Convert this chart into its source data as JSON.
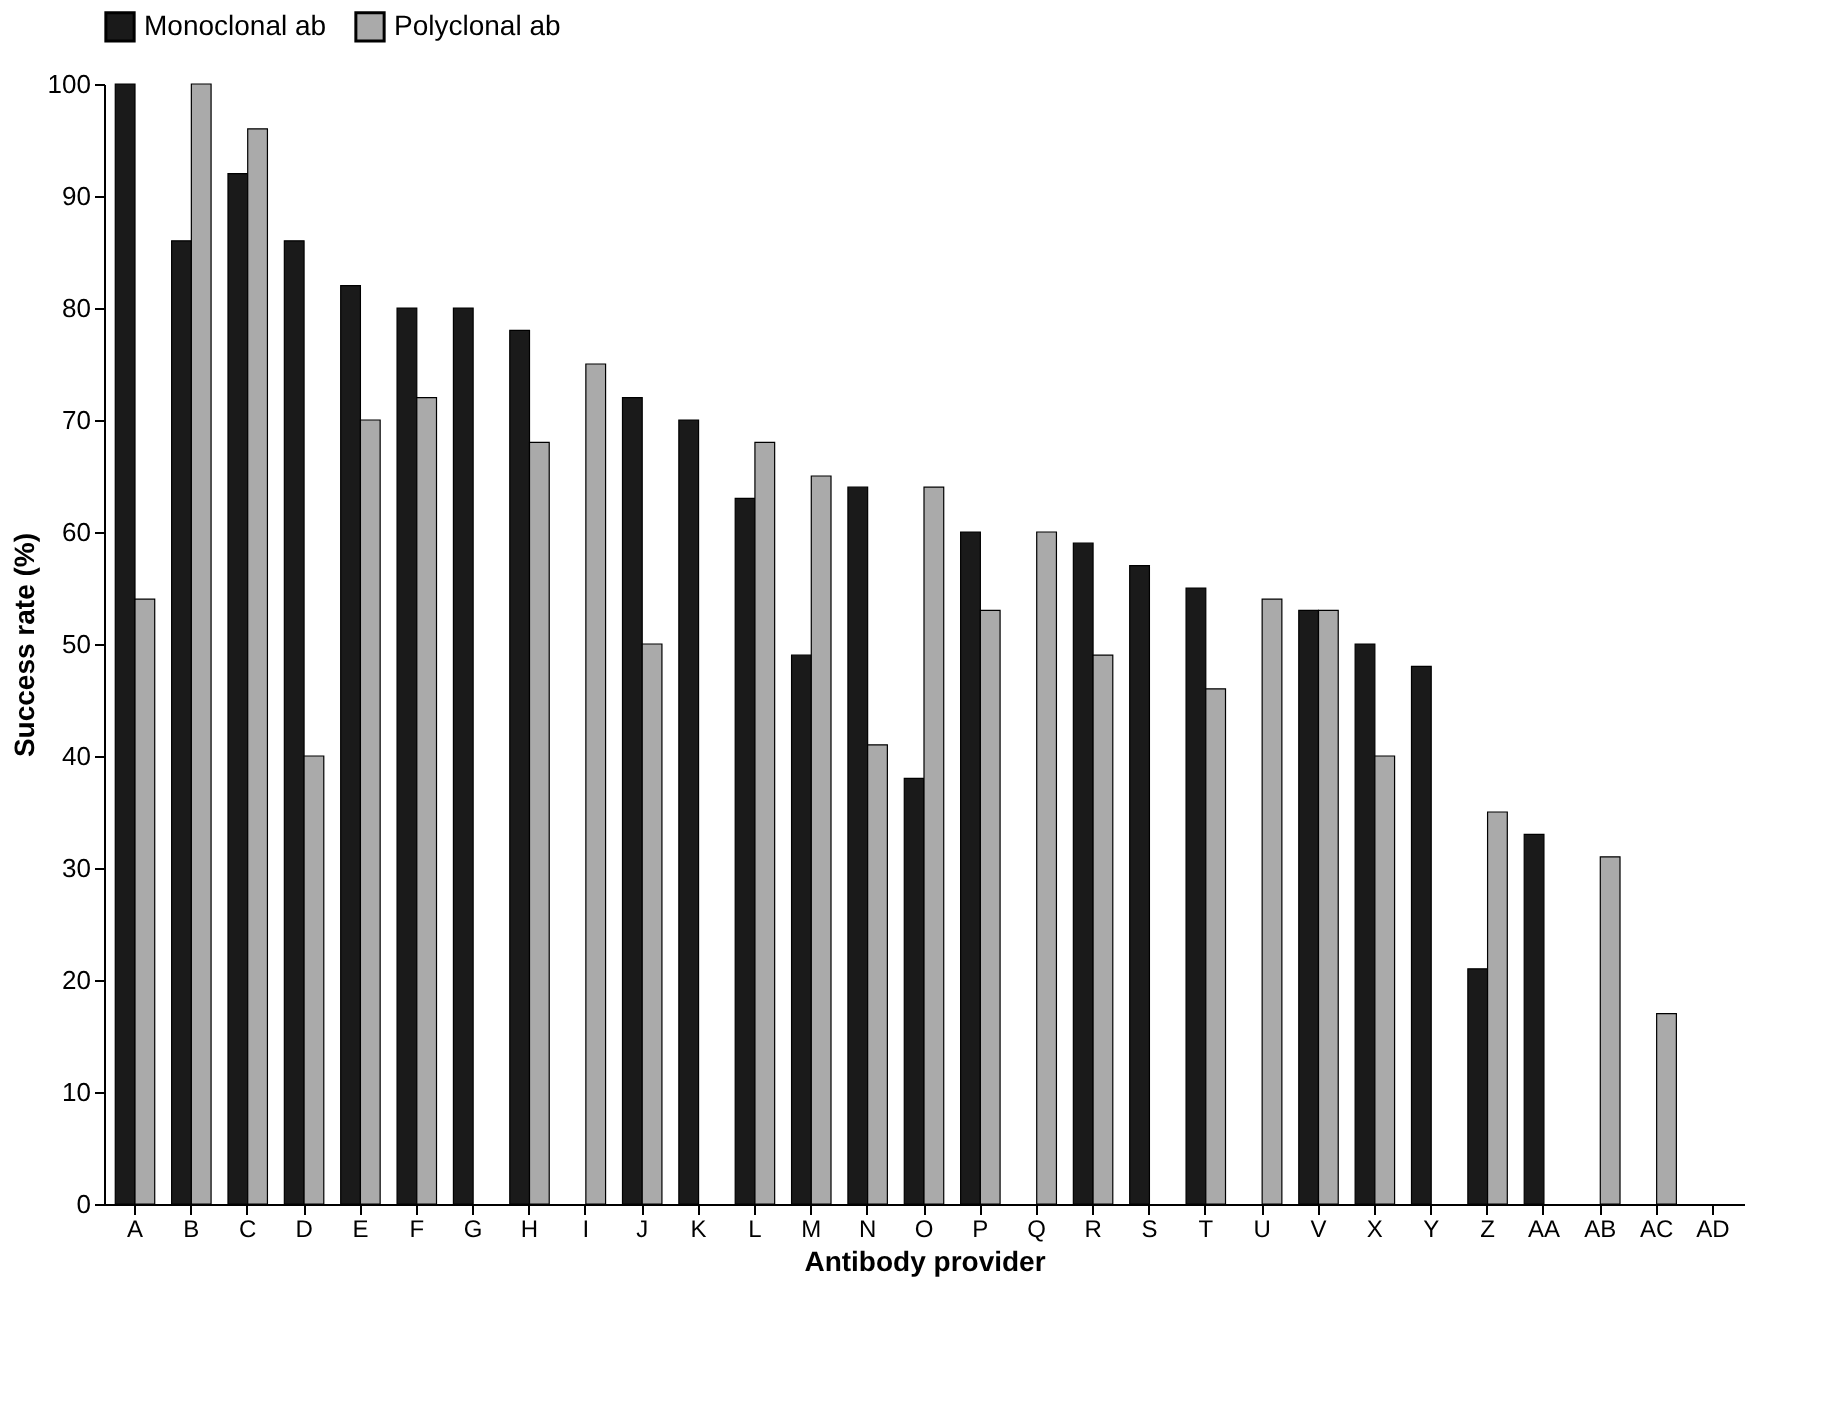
{
  "chart_data": {
    "type": "bar",
    "categories": [
      "A",
      "B",
      "C",
      "D",
      "E",
      "F",
      "G",
      "H",
      "I",
      "J",
      "K",
      "L",
      "M",
      "N",
      "O",
      "P",
      "Q",
      "R",
      "S",
      "T",
      "U",
      "V",
      "X",
      "Y",
      "Z",
      "AA",
      "AB",
      "AC",
      "AD"
    ],
    "series": [
      {
        "name": "Monoclonal ab",
        "color": "#1a1a1a",
        "values": [
          100,
          86,
          92,
          86,
          82,
          80,
          80,
          78,
          null,
          72,
          70,
          63,
          49,
          64,
          38,
          60,
          null,
          59,
          57,
          55,
          null,
          53,
          50,
          48,
          21,
          33,
          null,
          null,
          null
        ]
      },
      {
        "name": "Polyclonal ab",
        "color": "#aaaaaa",
        "values": [
          54,
          100,
          96,
          40,
          70,
          72,
          null,
          68,
          75,
          50,
          null,
          68,
          65,
          41,
          64,
          53,
          60,
          49,
          null,
          46,
          54,
          53,
          40,
          null,
          35,
          null,
          31,
          17,
          null
        ]
      }
    ],
    "xlabel": "Antibody provider",
    "ylabel": "Success rate (%)",
    "ylim": [
      0,
      100
    ],
    "yticks": [
      0,
      10,
      20,
      30,
      40,
      50,
      60,
      70,
      80,
      90,
      100
    ],
    "grid": false,
    "legend": "top"
  }
}
